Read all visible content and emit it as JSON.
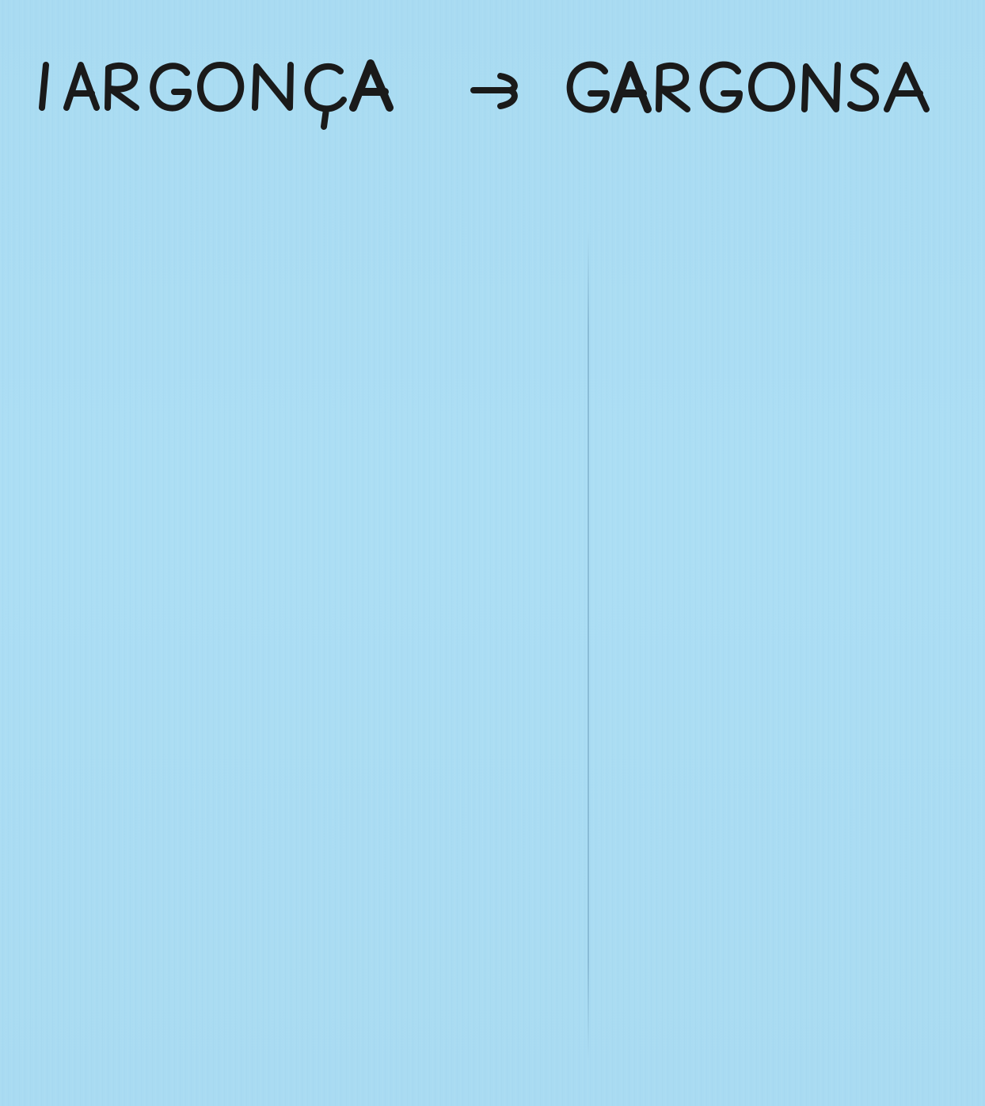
{
  "handwriting": {
    "original_word": "IARGONÇA",
    "arrow": "→",
    "result_word": "GARGONSA",
    "ink_color": "#1a1a1a"
  },
  "paper": {
    "color": "#aadcf3"
  }
}
